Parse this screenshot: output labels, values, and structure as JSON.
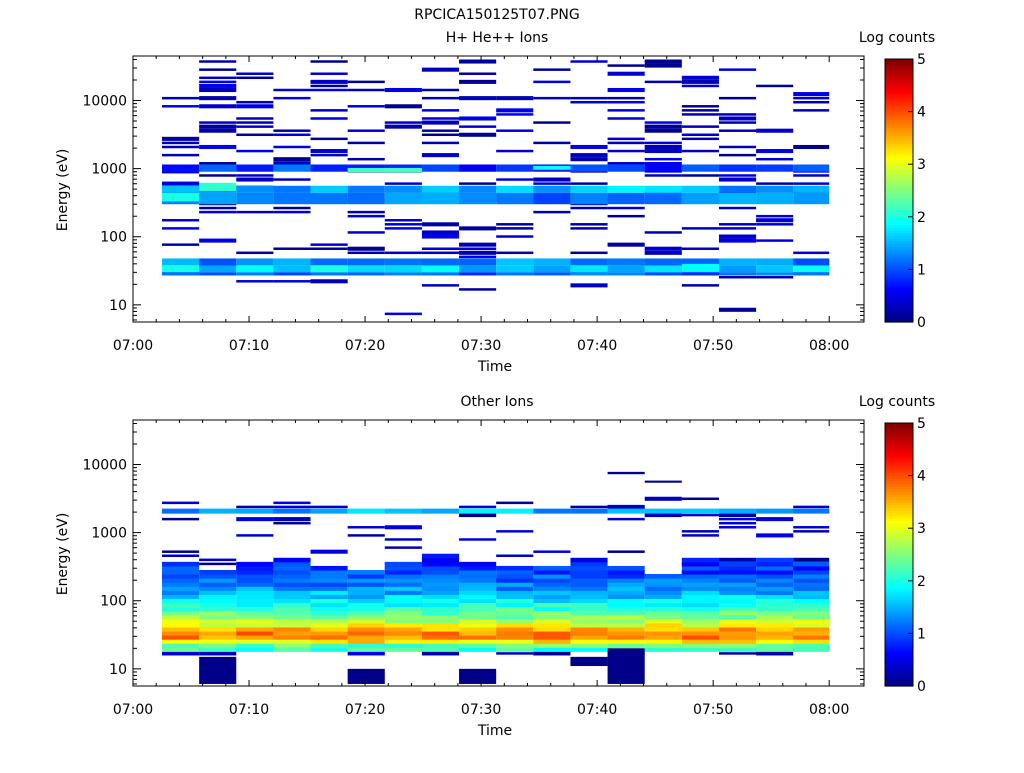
{
  "figure": {
    "title": "RPCICA150125T07.PNG"
  },
  "colors": {
    "colormap": [
      "#00007f",
      "#0000ff",
      "#007fff",
      "#00ffff",
      "#7fff7f",
      "#ffff00",
      "#ff7f00",
      "#ff0000",
      "#7f0000"
    ]
  },
  "chart_data": [
    {
      "type": "heatmap",
      "title": "H+ He++ Ions",
      "xlabel": "Time",
      "ylabel": "Energy (eV)",
      "x_ticks": [
        "07:00",
        "07:10",
        "07:20",
        "07:30",
        "07:40",
        "07:50",
        "08:00"
      ],
      "x_range_minutes": [
        0,
        63
      ],
      "y_scale": "log",
      "y_range_eV": [
        5.6,
        45000
      ],
      "y_ticks": [
        {
          "label": "10",
          "value": 10
        },
        {
          "label": "100",
          "value": 100
        },
        {
          "label": "1000",
          "value": 1000
        },
        {
          "label": "10000",
          "value": 10000
        }
      ],
      "colorbar": {
        "label": "Log counts",
        "range": [
          0,
          5
        ],
        "ticks": [
          "0",
          "1",
          "2",
          "3",
          "4",
          "5"
        ]
      },
      "time_bins_minutes": [
        2.5,
        5.7,
        8.9,
        12.1,
        15.3,
        18.5,
        21.7,
        24.9,
        28.1,
        31.3,
        34.5,
        37.7,
        40.9,
        44.1,
        47.3,
        50.5,
        53.7,
        56.9,
        60.0
      ],
      "bands": [
        {
          "e_min": 38,
          "e_max": 48,
          "log_counts": 1.3
        },
        {
          "e_min": 30,
          "e_max": 38,
          "log_counts": 1.7
        },
        {
          "e_min": 27,
          "e_max": 30,
          "log_counts": 1.1
        },
        {
          "e_min": 440,
          "e_max": 560,
          "log_counts": 1.5
        },
        {
          "e_min": 300,
          "e_max": 440,
          "log_counts": 1.2
        },
        {
          "e_min": 900,
          "e_max": 1150,
          "log_counts": 0.9
        }
      ],
      "bright_cells": [
        {
          "t0": 18.5,
          "t1": 24.9,
          "e_min": 880,
          "e_max": 1020,
          "log_counts": 2.2
        },
        {
          "t0": 34.5,
          "t1": 37.7,
          "e_min": 960,
          "e_max": 1100,
          "log_counts": 1.9
        },
        {
          "t0": 5.7,
          "t1": 8.9,
          "e_min": 470,
          "e_max": 620,
          "log_counts": 2.1
        },
        {
          "t0": 2.5,
          "t1": 5.7,
          "e_min": 330,
          "e_max": 440,
          "log_counts": 2.0
        },
        {
          "t0": 47.3,
          "t1": 50.5,
          "e_min": 33,
          "e_max": 40,
          "log_counts": 1.9
        }
      ],
      "sparse_line_density": 0.26
    },
    {
      "type": "heatmap",
      "title": "Other Ions",
      "xlabel": "Time",
      "ylabel": "Energy (eV)",
      "x_ticks": [
        "07:00",
        "07:10",
        "07:20",
        "07:30",
        "07:40",
        "07:50",
        "08:00"
      ],
      "x_range_minutes": [
        0,
        63
      ],
      "y_scale": "log",
      "y_range_eV": [
        5.6,
        45000
      ],
      "y_ticks": [
        {
          "label": "10",
          "value": 10
        },
        {
          "label": "100",
          "value": 100
        },
        {
          "label": "1000",
          "value": 1000
        },
        {
          "label": "10000",
          "value": 10000
        }
      ],
      "colorbar": {
        "label": "Log counts",
        "range": [
          0,
          5
        ],
        "ticks": [
          "0",
          "1",
          "2",
          "3",
          "4",
          "5"
        ]
      },
      "time_bins_minutes": [
        2.5,
        5.7,
        8.9,
        12.1,
        15.3,
        18.5,
        21.7,
        24.9,
        28.1,
        31.3,
        34.5,
        37.7,
        40.9,
        44.1,
        47.3,
        50.5,
        53.7,
        56.9,
        60.0
      ],
      "spectrum_profile": [
        {
          "e": 17,
          "log_counts": 2.0
        },
        {
          "e": 22,
          "log_counts": 2.3
        },
        {
          "e": 25,
          "log_counts": 3.2
        },
        {
          "e": 30,
          "log_counts": 3.8
        },
        {
          "e": 36,
          "log_counts": 3.7
        },
        {
          "e": 45,
          "log_counts": 3.0
        },
        {
          "e": 60,
          "log_counts": 2.5
        },
        {
          "e": 80,
          "log_counts": 2.1
        },
        {
          "e": 110,
          "log_counts": 1.7
        },
        {
          "e": 160,
          "log_counts": 1.3
        },
        {
          "e": 250,
          "log_counts": 1.0
        },
        {
          "e": 400,
          "log_counts": 0.7
        },
        {
          "e": 600,
          "log_counts": 0.4
        }
      ],
      "bands": [
        {
          "e_min": 1900,
          "e_max": 2250,
          "log_counts": 1.5
        }
      ],
      "extra_cells": [
        {
          "t0": 5.7,
          "t1": 8.9,
          "e_min": 6,
          "e_max": 15,
          "log_counts": 0.05
        },
        {
          "t0": 18.5,
          "t1": 21.7,
          "e_min": 6,
          "e_max": 10,
          "log_counts": 0.05
        },
        {
          "t0": 28.1,
          "t1": 31.3,
          "e_min": 6,
          "e_max": 10,
          "log_counts": 0.05
        },
        {
          "t0": 37.7,
          "t1": 40.9,
          "e_min": 11,
          "e_max": 15,
          "log_counts": 0.05
        },
        {
          "t0": 40.9,
          "t1": 44.1,
          "e_min": 6,
          "e_max": 20,
          "log_counts": 0.05
        },
        {
          "t0": 40.9,
          "t1": 44.1,
          "e_min": 7200,
          "e_max": 7800,
          "log_counts": 0.1
        },
        {
          "t0": 44.1,
          "t1": 47.3,
          "e_min": 5400,
          "e_max": 5800,
          "log_counts": 0.1
        }
      ],
      "sparse_line_density": 0.18
    }
  ]
}
